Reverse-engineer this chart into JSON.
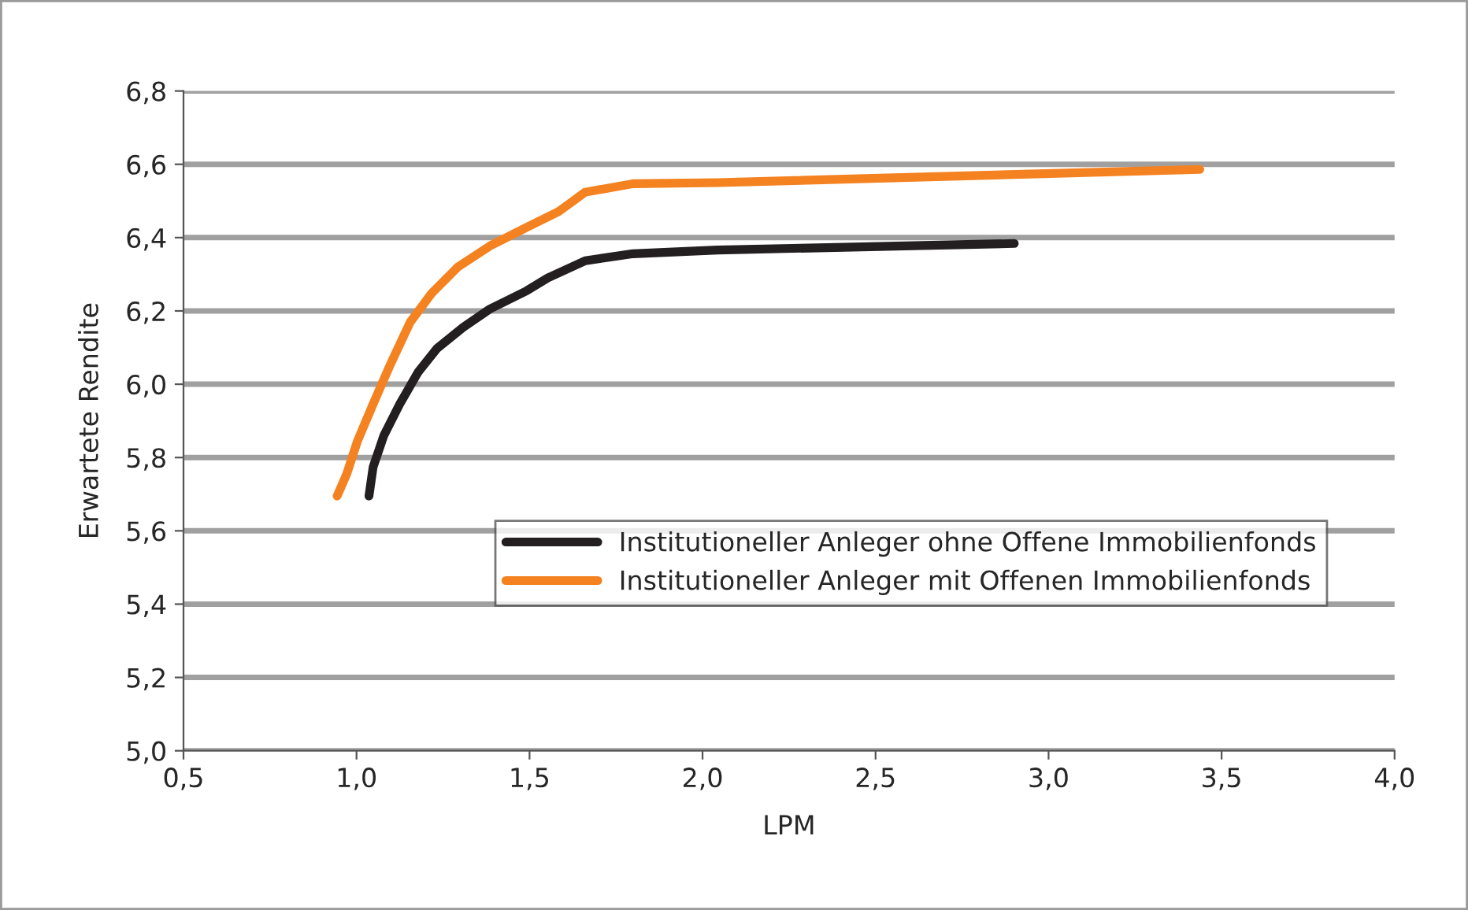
{
  "chart_data": {
    "type": "line",
    "xlabel": "LPM",
    "ylabel": "Erwartete Rendite",
    "xlim": [
      0.5,
      4.0
    ],
    "ylim": [
      5.0,
      6.8
    ],
    "xticks": [
      {
        "value": 0.5,
        "label": "0,5"
      },
      {
        "value": 1.0,
        "label": "1,0"
      },
      {
        "value": 1.5,
        "label": "1,5"
      },
      {
        "value": 2.0,
        "label": "2,0"
      },
      {
        "value": 2.5,
        "label": "2,5"
      },
      {
        "value": 3.0,
        "label": "3,0"
      },
      {
        "value": 3.5,
        "label": "3,5"
      },
      {
        "value": 4.0,
        "label": "4,0"
      }
    ],
    "yticks": [
      {
        "value": 5.0,
        "label": "5,0"
      },
      {
        "value": 5.2,
        "label": "5,2"
      },
      {
        "value": 5.4,
        "label": "5,4"
      },
      {
        "value": 5.6,
        "label": "5,6"
      },
      {
        "value": 5.8,
        "label": "5,8"
      },
      {
        "value": 6.0,
        "label": "6,0"
      },
      {
        "value": 6.2,
        "label": "6,2"
      },
      {
        "value": 6.4,
        "label": "6,4"
      },
      {
        "value": 6.6,
        "label": "6,6"
      },
      {
        "value": 6.8,
        "label": "6,8"
      }
    ],
    "grid": "y",
    "legend": "lower right",
    "marker": "none",
    "line_style": "solid",
    "series": [
      {
        "name": "Institutioneller Anleger ohne Offene Immobilienfonds",
        "color": "#231f20",
        "x": [
          1.036,
          1.048,
          1.079,
          1.125,
          1.178,
          1.232,
          1.308,
          1.385,
          1.492,
          1.553,
          1.661,
          1.799,
          2.043,
          2.901
        ],
        "values": [
          5.695,
          5.774,
          5.86,
          5.946,
          6.033,
          6.097,
          6.155,
          6.205,
          6.255,
          6.29,
          6.337,
          6.356,
          6.366,
          6.384
        ]
      },
      {
        "name": "Institutioneller Anleger mit Offenen Immobilienfonds",
        "color": "#f58220",
        "x": [
          0.944,
          0.972,
          1.002,
          1.048,
          1.094,
          1.155,
          1.217,
          1.293,
          1.385,
          1.492,
          1.584,
          1.661,
          1.799,
          2.043,
          3.437
        ],
        "values": [
          5.695,
          5.756,
          5.843,
          5.946,
          6.046,
          6.169,
          6.248,
          6.32,
          6.377,
          6.428,
          6.471,
          6.524,
          6.547,
          6.55,
          6.586
        ]
      }
    ]
  }
}
